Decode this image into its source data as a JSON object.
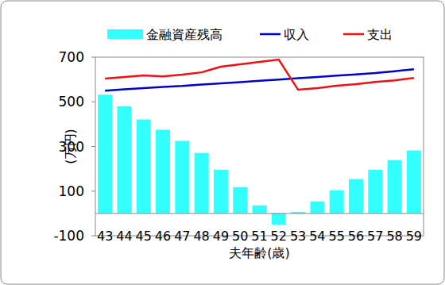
{
  "chart_data": {
    "type": "bar",
    "x_label": "夫年齢(歳)",
    "y_label": "(万円)",
    "categories": [
      "43",
      "44",
      "45",
      "46",
      "47",
      "48",
      "49",
      "50",
      "51",
      "52",
      "53",
      "54",
      "55",
      "56",
      "57",
      "58",
      "59"
    ],
    "series": [
      {
        "name": "金融資産残高",
        "type": "bar",
        "color": "#33ffff",
        "values": [
          532,
          480,
          421,
          375,
          325,
          271,
          196,
          118,
          36,
          -50,
          7,
          54,
          104,
          154,
          196,
          239,
          282
        ]
      },
      {
        "name": "収入",
        "type": "line",
        "color": "#0000cc",
        "values": [
          550,
          556,
          561,
          567,
          571,
          577,
          583,
          588,
          594,
          600,
          606,
          611,
          617,
          623,
          629,
          637,
          646
        ]
      },
      {
        "name": "支出",
        "type": "line",
        "color": "#ee1111",
        "values": [
          604,
          611,
          618,
          614,
          622,
          632,
          657,
          668,
          679,
          689,
          554,
          561,
          572,
          579,
          589,
          596,
          607
        ]
      }
    ],
    "ylim": [
      -100,
      700
    ],
    "yticks": [
      -100,
      100,
      300,
      500,
      700
    ],
    "grid": false,
    "legend": "top"
  }
}
